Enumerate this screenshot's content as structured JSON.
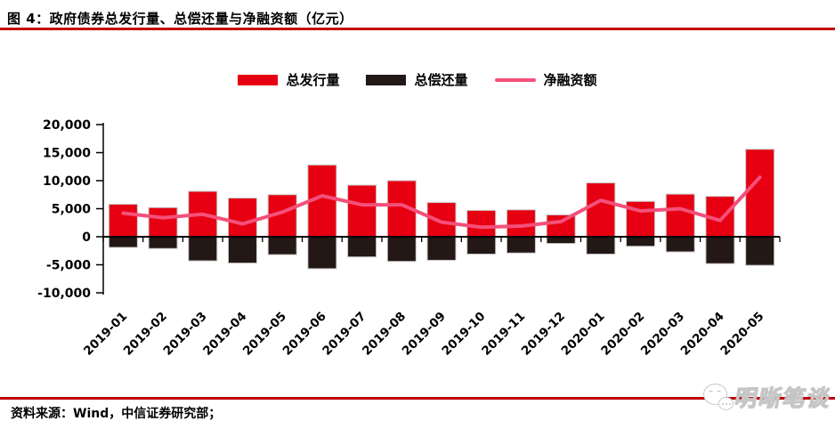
{
  "header": {
    "title": "图 4：政府债券总发行量、总偿还量与净融资额（亿元）"
  },
  "legend": [
    {
      "label": "总发行量",
      "type": "bar",
      "color": "#e60012"
    },
    {
      "label": "总偿还量",
      "type": "bar",
      "color": "#231815"
    },
    {
      "label": "净融资额",
      "type": "line",
      "color": "#f4507a"
    }
  ],
  "chart_data": {
    "type": "bar",
    "subtype": "combo-bar-line",
    "title": "政府债券总发行量、总偿还量与净融资额（亿元）",
    "unit": "亿元",
    "categories": [
      "2019-01",
      "2019-02",
      "2019-03",
      "2019-04",
      "2019-05",
      "2019-06",
      "2019-07",
      "2019-08",
      "2019-09",
      "2019-10",
      "2019-11",
      "2019-12",
      "2020-01",
      "2020-02",
      "2020-03",
      "2020-04",
      "2020-05"
    ],
    "series": [
      {
        "name": "总发行量",
        "type": "bar",
        "color": "#e60012",
        "values": [
          5800,
          5200,
          8100,
          6900,
          7500,
          12800,
          9200,
          10000,
          6100,
          4700,
          4800,
          3900,
          9600,
          6300,
          7600,
          7200,
          15600
        ]
      },
      {
        "name": "总偿还量",
        "type": "bar",
        "color": "#231815",
        "values": [
          -1900,
          -2100,
          -4300,
          -4700,
          -3200,
          -5700,
          -3600,
          -4400,
          -4200,
          -3100,
          -2900,
          -1200,
          -3100,
          -1700,
          -2700,
          -4800,
          -5100
        ]
      },
      {
        "name": "净融资额",
        "type": "line",
        "color": "#f4507a",
        "values": [
          4200,
          3400,
          4000,
          2300,
          4400,
          7300,
          5700,
          5700,
          2600,
          1700,
          1900,
          2700,
          6500,
          4600,
          5000,
          2900,
          10600
        ]
      }
    ],
    "ylim": [
      -10000,
      20000
    ],
    "ytick_interval": 5000,
    "yticks": [
      {
        "value": 20000,
        "label": "20,000"
      },
      {
        "value": 15000,
        "label": "15,000"
      },
      {
        "value": 10000,
        "label": "10,000"
      },
      {
        "value": 5000,
        "label": "5,000"
      },
      {
        "value": 0,
        "label": "0"
      },
      {
        "value": -5000,
        "label": "-5,000"
      },
      {
        "value": -10000,
        "label": "-10,000"
      }
    ],
    "grid": false,
    "legend_position": "top",
    "x_label_rotation_deg": 45
  },
  "footer": {
    "source": "资料来源：Wind，中信证券研究部；"
  },
  "watermark": {
    "text": "明晰笔谈"
  },
  "colors": {
    "rule": "#c00000",
    "axis": "#000000",
    "bar_outline": "#c8c8c8",
    "background": "#ffffff"
  }
}
